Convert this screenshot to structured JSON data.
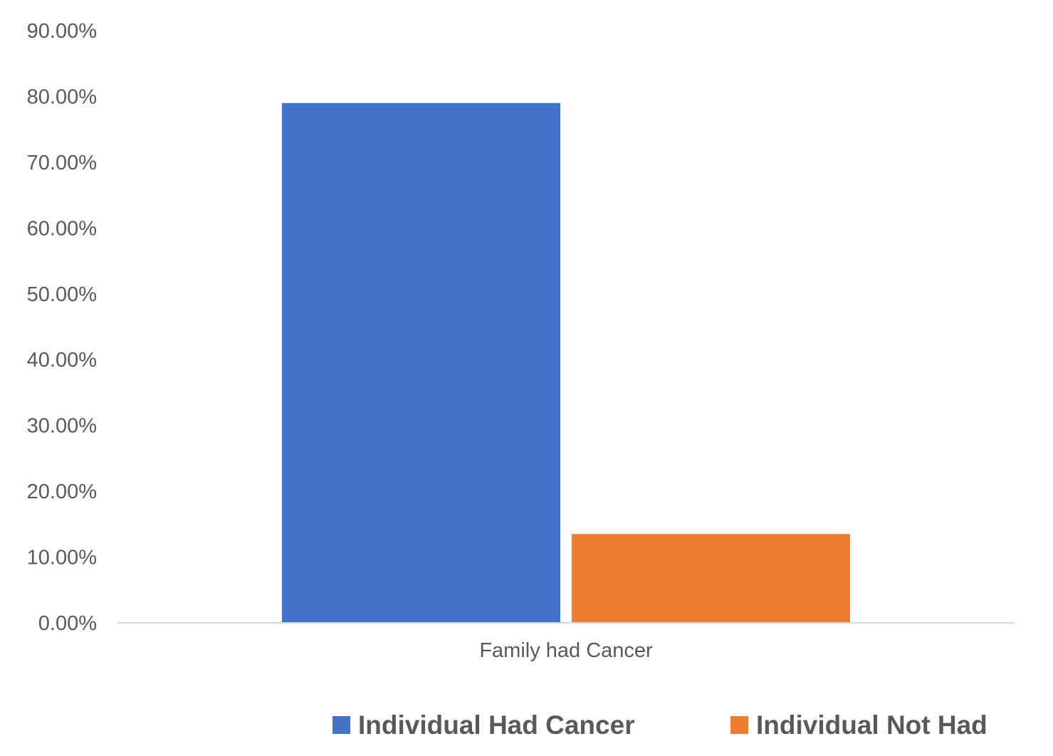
{
  "chart_data": {
    "type": "bar",
    "categories": [
      "Family had Cancer"
    ],
    "series": [
      {
        "name": "Individual Had Cancer",
        "values": [
          79.0
        ],
        "color": "#4472C4"
      },
      {
        "name": "Individual Not Had",
        "values": [
          13.5
        ],
        "color": "#ED7D31"
      }
    ],
    "title": "",
    "xlabel": "",
    "ylabel": "",
    "ylim": [
      0,
      90
    ],
    "y_ticks": [
      "0.00%",
      "10.00%",
      "20.00%",
      "30.00%",
      "40.00%",
      "50.00%",
      "60.00%",
      "70.00%",
      "80.00%",
      "90.00%"
    ],
    "grid": false,
    "legend_position": "bottom",
    "axis_line_color": "#D9D9D9"
  }
}
